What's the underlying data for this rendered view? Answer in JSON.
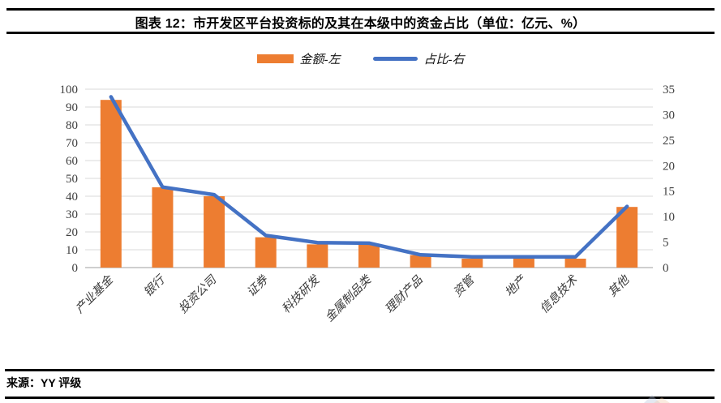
{
  "title": "图表 12：市开发区平台投资标的及其在本级中的资金占比（单位：亿元、%）",
  "source": "来源：YY 评级",
  "legend": [
    {
      "label": "金额-左",
      "type": "bar",
      "color": "#ED7D31"
    },
    {
      "label": "占比-右",
      "type": "line",
      "color": "#4472C4"
    }
  ],
  "colors": {
    "bar": "#ED7D31",
    "line": "#4472C4",
    "grid": "#D9D9D9",
    "axis": "#BFBFBF",
    "tick_text": "#3F3F3F",
    "category_text": "#3A3A3A"
  },
  "chart_data": {
    "type": "bar",
    "subtype": "bar+line dual axis",
    "title": "市开发区平台投资标的及其在本级中的资金占比",
    "units": "亿元、%",
    "categories": [
      "产业基金",
      "银行",
      "投资公司",
      "证券",
      "科技研发",
      "金属制品类",
      "理财产品",
      "资管",
      "地产",
      "信息技术",
      "其他"
    ],
    "series": [
      {
        "name": "金额-左",
        "type": "bar",
        "axis": "left",
        "values": [
          94,
          45,
          40,
          17,
          13,
          13,
          7,
          5,
          5,
          5,
          34
        ]
      },
      {
        "name": "占比-右",
        "type": "line",
        "axis": "right",
        "values": [
          33.5,
          15.8,
          14.3,
          6.3,
          4.9,
          4.8,
          2.5,
          2.1,
          2.1,
          2.1,
          12
        ]
      }
    ],
    "left_axis": {
      "min": 0,
      "max": 100,
      "step": 10,
      "ticks": [
        0,
        10,
        20,
        30,
        40,
        50,
        60,
        70,
        80,
        90,
        100
      ]
    },
    "right_axis": {
      "min": 0,
      "max": 35,
      "step": 5,
      "ticks": [
        0,
        5,
        10,
        15,
        20,
        25,
        30,
        35
      ]
    },
    "grid": true,
    "legend_position": "top"
  }
}
